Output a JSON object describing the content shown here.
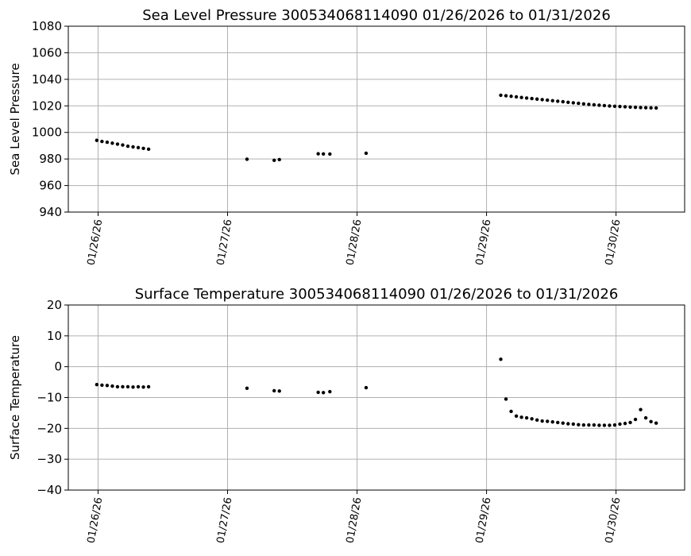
{
  "chart_data": [
    {
      "type": "scatter",
      "title": "Sea Level Pressure 300534068114090  01/26/2026 to 01/31/2026",
      "xlabel": "",
      "ylabel": "Sea Level Pressure",
      "ylim": [
        940,
        1080
      ],
      "yticks": [
        940,
        960,
        980,
        1000,
        1020,
        1040,
        1060,
        1080
      ],
      "xlim": [
        -0.23,
        4.53
      ],
      "xticks": [
        0,
        1,
        2,
        3,
        4
      ],
      "xtick_labels": [
        "01/26/26",
        "01/27/26",
        "01/28/26",
        "01/29/26",
        "01/30/26"
      ],
      "grid": true,
      "x_unit": "days since 01/26/26 00:00",
      "series": [
        {
          "name": "Sea Level Pressure",
          "color": "#000000",
          "points": [
            [
              -0.01,
              994
            ],
            [
              0.03,
              993.2
            ],
            [
              0.07,
              992.6
            ],
            [
              0.11,
              991.9
            ],
            [
              0.15,
              991.2
            ],
            [
              0.19,
              990.5
            ],
            [
              0.23,
              989.6
            ],
            [
              0.27,
              989.1
            ],
            [
              0.31,
              988.6
            ],
            [
              0.35,
              988.0
            ],
            [
              0.39,
              987.4
            ],
            [
              1.15,
              979.8
            ],
            [
              1.36,
              979.0
            ],
            [
              1.4,
              979.5
            ],
            [
              1.7,
              983.9
            ],
            [
              1.74,
              983.8
            ],
            [
              1.79,
              983.7
            ],
            [
              2.07,
              984.3
            ],
            [
              3.11,
              1028.0
            ],
            [
              3.15,
              1027.6
            ],
            [
              3.19,
              1027.2
            ],
            [
              3.23,
              1026.8
            ],
            [
              3.27,
              1026.3
            ],
            [
              3.31,
              1025.9
            ],
            [
              3.35,
              1025.5
            ],
            [
              3.39,
              1025.1
            ],
            [
              3.43,
              1024.7
            ],
            [
              3.47,
              1024.3
            ],
            [
              3.51,
              1023.9
            ],
            [
              3.55,
              1023.5
            ],
            [
              3.59,
              1023.1
            ],
            [
              3.63,
              1022.7
            ],
            [
              3.67,
              1022.3
            ],
            [
              3.71,
              1021.9
            ],
            [
              3.75,
              1021.5
            ],
            [
              3.79,
              1021.1
            ],
            [
              3.83,
              1020.8
            ],
            [
              3.87,
              1020.5
            ],
            [
              3.91,
              1020.2
            ],
            [
              3.95,
              1019.9
            ],
            [
              3.99,
              1019.7
            ],
            [
              4.03,
              1019.5
            ],
            [
              4.07,
              1019.3
            ],
            [
              4.11,
              1019.1
            ],
            [
              4.15,
              1018.9
            ],
            [
              4.19,
              1018.7
            ],
            [
              4.23,
              1018.6
            ],
            [
              4.27,
              1018.5
            ],
            [
              4.31,
              1018.4
            ]
          ]
        }
      ]
    },
    {
      "type": "scatter",
      "title": "Surface Temperature 300534068114090  01/26/2026 to 01/31/2026",
      "xlabel": "",
      "ylabel": "Surface Temperature",
      "ylim": [
        -40,
        20
      ],
      "yticks": [
        -40,
        -30,
        -20,
        -10,
        0,
        10,
        20
      ],
      "xlim": [
        -0.23,
        4.53
      ],
      "xticks": [
        0,
        1,
        2,
        3,
        4
      ],
      "xtick_labels": [
        "01/26/26",
        "01/27/26",
        "01/28/26",
        "01/29/26",
        "01/30/26"
      ],
      "grid": true,
      "x_unit": "days since 01/26/26 00:00",
      "series": [
        {
          "name": "Surface Temperature",
          "color": "#000000",
          "points": [
            [
              -0.01,
              -5.8
            ],
            [
              0.03,
              -6.0
            ],
            [
              0.07,
              -6.1
            ],
            [
              0.11,
              -6.3
            ],
            [
              0.15,
              -6.5
            ],
            [
              0.19,
              -6.5
            ],
            [
              0.23,
              -6.5
            ],
            [
              0.27,
              -6.6
            ],
            [
              0.31,
              -6.5
            ],
            [
              0.35,
              -6.6
            ],
            [
              0.39,
              -6.5
            ],
            [
              1.15,
              -7.0
            ],
            [
              1.36,
              -7.8
            ],
            [
              1.4,
              -7.9
            ],
            [
              1.7,
              -8.3
            ],
            [
              1.74,
              -8.4
            ],
            [
              1.79,
              -8.1
            ],
            [
              2.07,
              -6.8
            ],
            [
              3.11,
              2.4
            ],
            [
              3.15,
              -10.5
            ],
            [
              3.19,
              -14.5
            ],
            [
              3.23,
              -16.0
            ],
            [
              3.27,
              -16.4
            ],
            [
              3.31,
              -16.6
            ],
            [
              3.35,
              -16.9
            ],
            [
              3.39,
              -17.3
            ],
            [
              3.43,
              -17.6
            ],
            [
              3.47,
              -17.7
            ],
            [
              3.51,
              -17.9
            ],
            [
              3.55,
              -18.1
            ],
            [
              3.59,
              -18.3
            ],
            [
              3.63,
              -18.5
            ],
            [
              3.67,
              -18.6
            ],
            [
              3.71,
              -18.8
            ],
            [
              3.75,
              -18.9
            ],
            [
              3.79,
              -18.9
            ],
            [
              3.83,
              -18.9
            ],
            [
              3.87,
              -19.0
            ],
            [
              3.91,
              -19.0
            ],
            [
              3.95,
              -19.0
            ],
            [
              3.99,
              -18.9
            ],
            [
              4.03,
              -18.6
            ],
            [
              4.07,
              -18.4
            ],
            [
              4.11,
              -18.1
            ],
            [
              4.15,
              -17.1
            ],
            [
              4.19,
              -13.9
            ],
            [
              4.23,
              -16.6
            ],
            [
              4.27,
              -17.8
            ],
            [
              4.31,
              -18.3
            ]
          ]
        }
      ]
    }
  ]
}
